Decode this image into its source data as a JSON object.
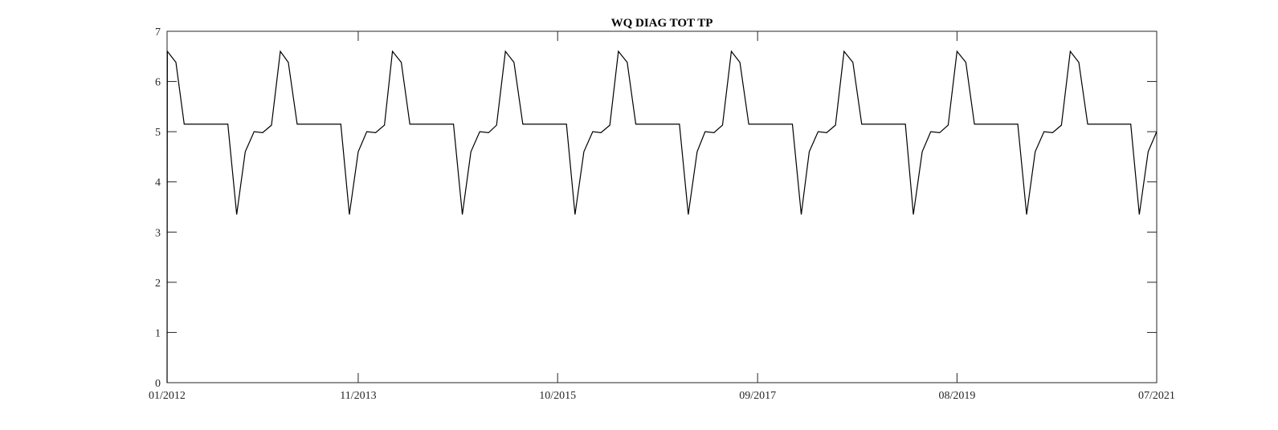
{
  "chart_data": {
    "type": "line",
    "title": "WQ DIAG TOT TP",
    "xlabel": "",
    "ylabel": "",
    "x_range": [
      "2012-01-01",
      "2021-07-01"
    ],
    "ylim": [
      0,
      7
    ],
    "grid": false,
    "legend": "none",
    "x_ticks": [
      "01/2012",
      "11/2013",
      "10/2015",
      "09/2017",
      "08/2019",
      "07/2021"
    ],
    "y_ticks": [
      "0",
      "1",
      "2",
      "3",
      "4",
      "5",
      "6",
      "7"
    ],
    "line_color": "#000000",
    "series": [
      {
        "x": [
          "2012-01-01",
          "2012-01-02",
          "2012-02-01",
          "2012-03-01",
          "2012-04-01",
          "2012-05-01",
          "2012-06-01",
          "2012-07-01",
          "2012-08-01",
          "2012-09-01",
          "2012-10-01",
          "2012-11-01",
          "2012-12-01",
          "2013-01-01",
          "2013-02-01",
          "2013-03-01",
          "2013-04-01",
          "2013-05-01",
          "2013-06-01",
          "2013-07-01",
          "2013-08-01",
          "2013-09-01",
          "2013-10-01",
          "2013-11-01",
          "2013-12-01",
          "2014-01-01",
          "2014-02-01",
          "2014-03-01",
          "2014-04-01",
          "2014-05-01",
          "2014-06-01",
          "2014-07-01",
          "2014-08-01",
          "2014-09-01",
          "2014-10-01",
          "2014-11-01",
          "2014-12-01",
          "2015-01-01",
          "2015-02-01",
          "2015-03-01",
          "2015-04-01",
          "2015-05-01",
          "2015-06-01",
          "2015-07-01",
          "2015-08-01",
          "2015-09-01",
          "2015-10-01",
          "2015-11-01",
          "2015-12-01",
          "2016-01-01",
          "2016-02-01",
          "2016-03-01",
          "2016-04-01",
          "2016-05-01",
          "2016-06-01",
          "2016-07-01",
          "2016-08-01",
          "2016-09-01",
          "2016-10-01",
          "2016-11-01",
          "2016-12-01",
          "2017-01-01",
          "2017-02-01",
          "2017-03-01",
          "2017-04-01",
          "2017-05-01",
          "2017-06-01",
          "2017-07-01",
          "2017-08-01",
          "2017-09-01",
          "2017-10-01",
          "2017-11-01",
          "2017-12-01",
          "2018-01-01",
          "2018-02-01",
          "2018-03-01",
          "2018-04-01",
          "2018-05-01",
          "2018-06-01",
          "2018-07-01",
          "2018-08-01",
          "2018-09-01",
          "2018-10-01",
          "2018-11-01",
          "2018-12-01",
          "2019-01-01",
          "2019-02-01",
          "2019-03-01",
          "2019-04-01",
          "2019-05-01",
          "2019-06-01",
          "2019-07-01",
          "2019-08-01",
          "2019-09-01",
          "2019-10-01",
          "2019-11-01",
          "2019-12-01",
          "2020-01-01",
          "2020-02-01",
          "2020-03-01",
          "2020-04-01",
          "2020-05-01",
          "2020-06-01",
          "2020-07-01",
          "2020-08-01",
          "2020-09-01",
          "2020-10-01",
          "2020-11-01",
          "2020-12-01",
          "2021-01-01",
          "2021-02-01",
          "2021-03-01",
          "2021-04-01",
          "2021-05-01",
          "2021-06-01",
          "2021-07-01"
        ],
        "y": [
          0,
          6.6,
          6.38,
          5.15,
          5.15,
          5.15,
          5.15,
          5.15,
          5.15,
          3.35,
          4.6,
          5.0,
          4.98,
          5.13,
          6.6,
          6.38,
          5.15,
          5.15,
          5.15,
          5.15,
          5.15,
          5.15,
          3.35,
          4.6,
          5.0,
          4.98,
          5.13,
          6.6,
          6.38,
          5.15,
          5.15,
          5.15,
          5.15,
          5.15,
          5.15,
          3.35,
          4.6,
          5.0,
          4.98,
          5.13,
          6.6,
          6.38,
          5.15,
          5.15,
          5.15,
          5.15,
          5.15,
          5.15,
          3.35,
          4.6,
          5.0,
          4.98,
          5.13,
          6.6,
          6.38,
          5.15,
          5.15,
          5.15,
          5.15,
          5.15,
          5.15,
          3.35,
          4.6,
          5.0,
          4.98,
          5.13,
          6.6,
          6.38,
          5.15,
          5.15,
          5.15,
          5.15,
          5.15,
          5.15,
          3.35,
          4.6,
          5.0,
          4.98,
          5.13,
          6.6,
          6.38,
          5.15,
          5.15,
          5.15,
          5.15,
          5.15,
          5.15,
          3.35,
          4.6,
          5.0,
          4.98,
          5.13,
          6.6,
          6.38,
          5.15,
          5.15,
          5.15,
          5.15,
          5.15,
          5.15,
          3.35,
          4.6,
          5.0,
          4.98,
          5.13,
          6.6,
          6.38,
          5.15,
          5.15,
          5.15,
          5.15,
          5.15,
          5.15,
          3.35,
          4.6,
          5.0
        ]
      }
    ]
  }
}
